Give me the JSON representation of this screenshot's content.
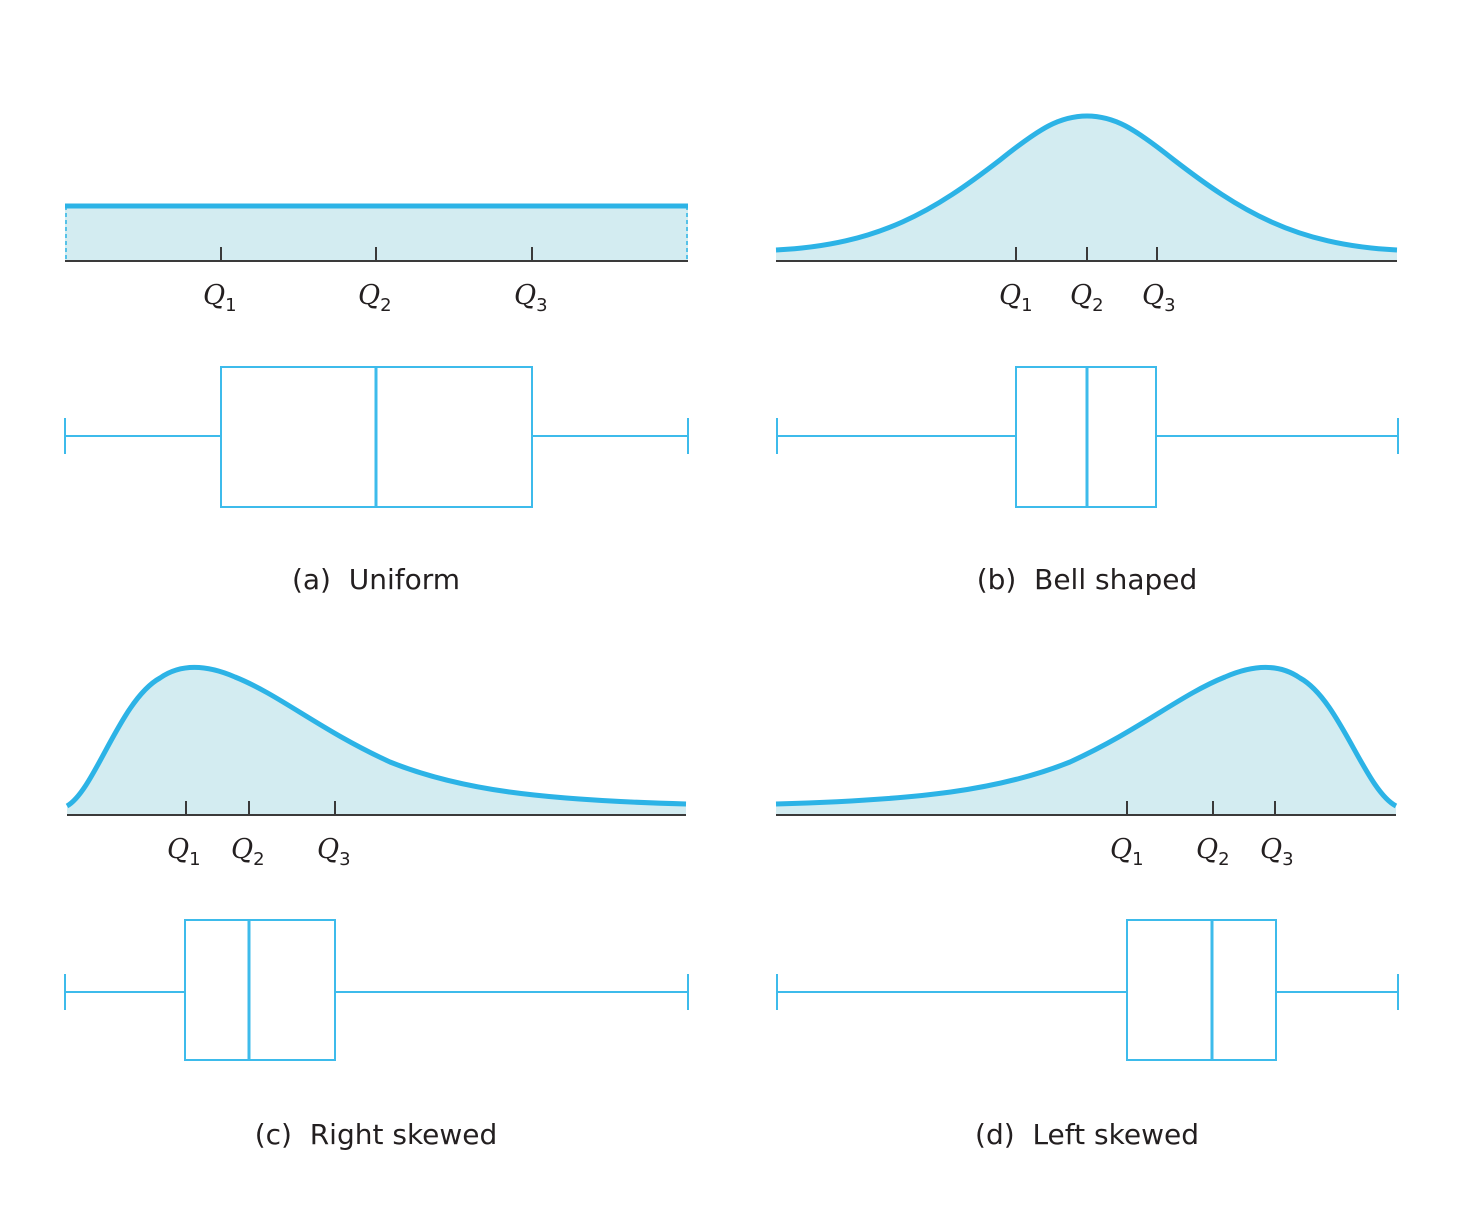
{
  "colors": {
    "curve": "#2cb3e6",
    "fill": "#d3ecf1",
    "axis": "#3a3a3a",
    "box": "#3dbbeb",
    "text": "#231f20"
  },
  "panels": [
    {
      "id": "uniform",
      "caption": "(a)  Uniform",
      "shape": "uniform",
      "quartile_labels": [
        {
          "letter": "Q",
          "sub": "1"
        },
        {
          "letter": "Q",
          "sub": "2"
        },
        {
          "letter": "Q",
          "sub": "3"
        }
      ],
      "box": {
        "min": 0,
        "q1": 0.25,
        "median": 0.5,
        "q3": 0.75,
        "max": 1
      }
    },
    {
      "id": "bell",
      "caption": "(b)  Bell shaped",
      "shape": "bell",
      "quartile_labels": [
        {
          "letter": "Q",
          "sub": "1"
        },
        {
          "letter": "Q",
          "sub": "2"
        },
        {
          "letter": "Q",
          "sub": "3"
        }
      ],
      "box": {
        "min": 0,
        "q1": 0.387,
        "median": 0.5,
        "q3": 0.613,
        "max": 1
      }
    },
    {
      "id": "right-skewed",
      "caption": "(c)  Right skewed",
      "shape": "right-skewed",
      "quartile_labels": [
        {
          "letter": "Q",
          "sub": "1"
        },
        {
          "letter": "Q",
          "sub": "2"
        },
        {
          "letter": "Q",
          "sub": "3"
        }
      ],
      "box": {
        "min": 0,
        "q1": 0.192,
        "median": 0.294,
        "q3": 0.434,
        "max": 1
      }
    },
    {
      "id": "left-skewed",
      "caption": "(d)  Left skewed",
      "shape": "left-skewed",
      "quartile_labels": [
        {
          "letter": "Q",
          "sub": "1"
        },
        {
          "letter": "Q",
          "sub": "2"
        },
        {
          "letter": "Q",
          "sub": "3"
        }
      ],
      "box": {
        "min": 0,
        "q1": 0.566,
        "median": 0.704,
        "q3": 0.804,
        "max": 1
      }
    }
  ]
}
